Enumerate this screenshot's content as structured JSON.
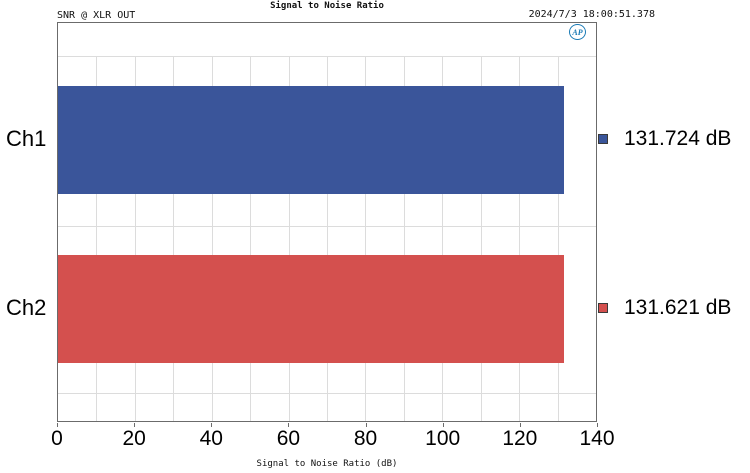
{
  "header": {
    "left_label": "SNR @ XLR OUT",
    "title": "Signal to Noise Ratio",
    "timestamp": "2024/7/3 18:00:51.378",
    "logo_text": "AP"
  },
  "chart_data": {
    "type": "bar",
    "orientation": "horizontal",
    "title": "Signal to Noise Ratio",
    "xlabel": "Signal to Noise Ratio (dB)",
    "categories": [
      "Ch1",
      "Ch2"
    ],
    "values": [
      131.724,
      131.621
    ],
    "value_labels": [
      "131.724 dB",
      "131.621 dB"
    ],
    "bar_colors": [
      "#3a559a",
      "#d4504e"
    ],
    "xlim": [
      0,
      140
    ],
    "x_ticks": [
      0,
      20,
      40,
      60,
      80,
      100,
      120,
      140
    ],
    "minor_grid_step": 10,
    "grid": true,
    "legend_position": "right"
  }
}
